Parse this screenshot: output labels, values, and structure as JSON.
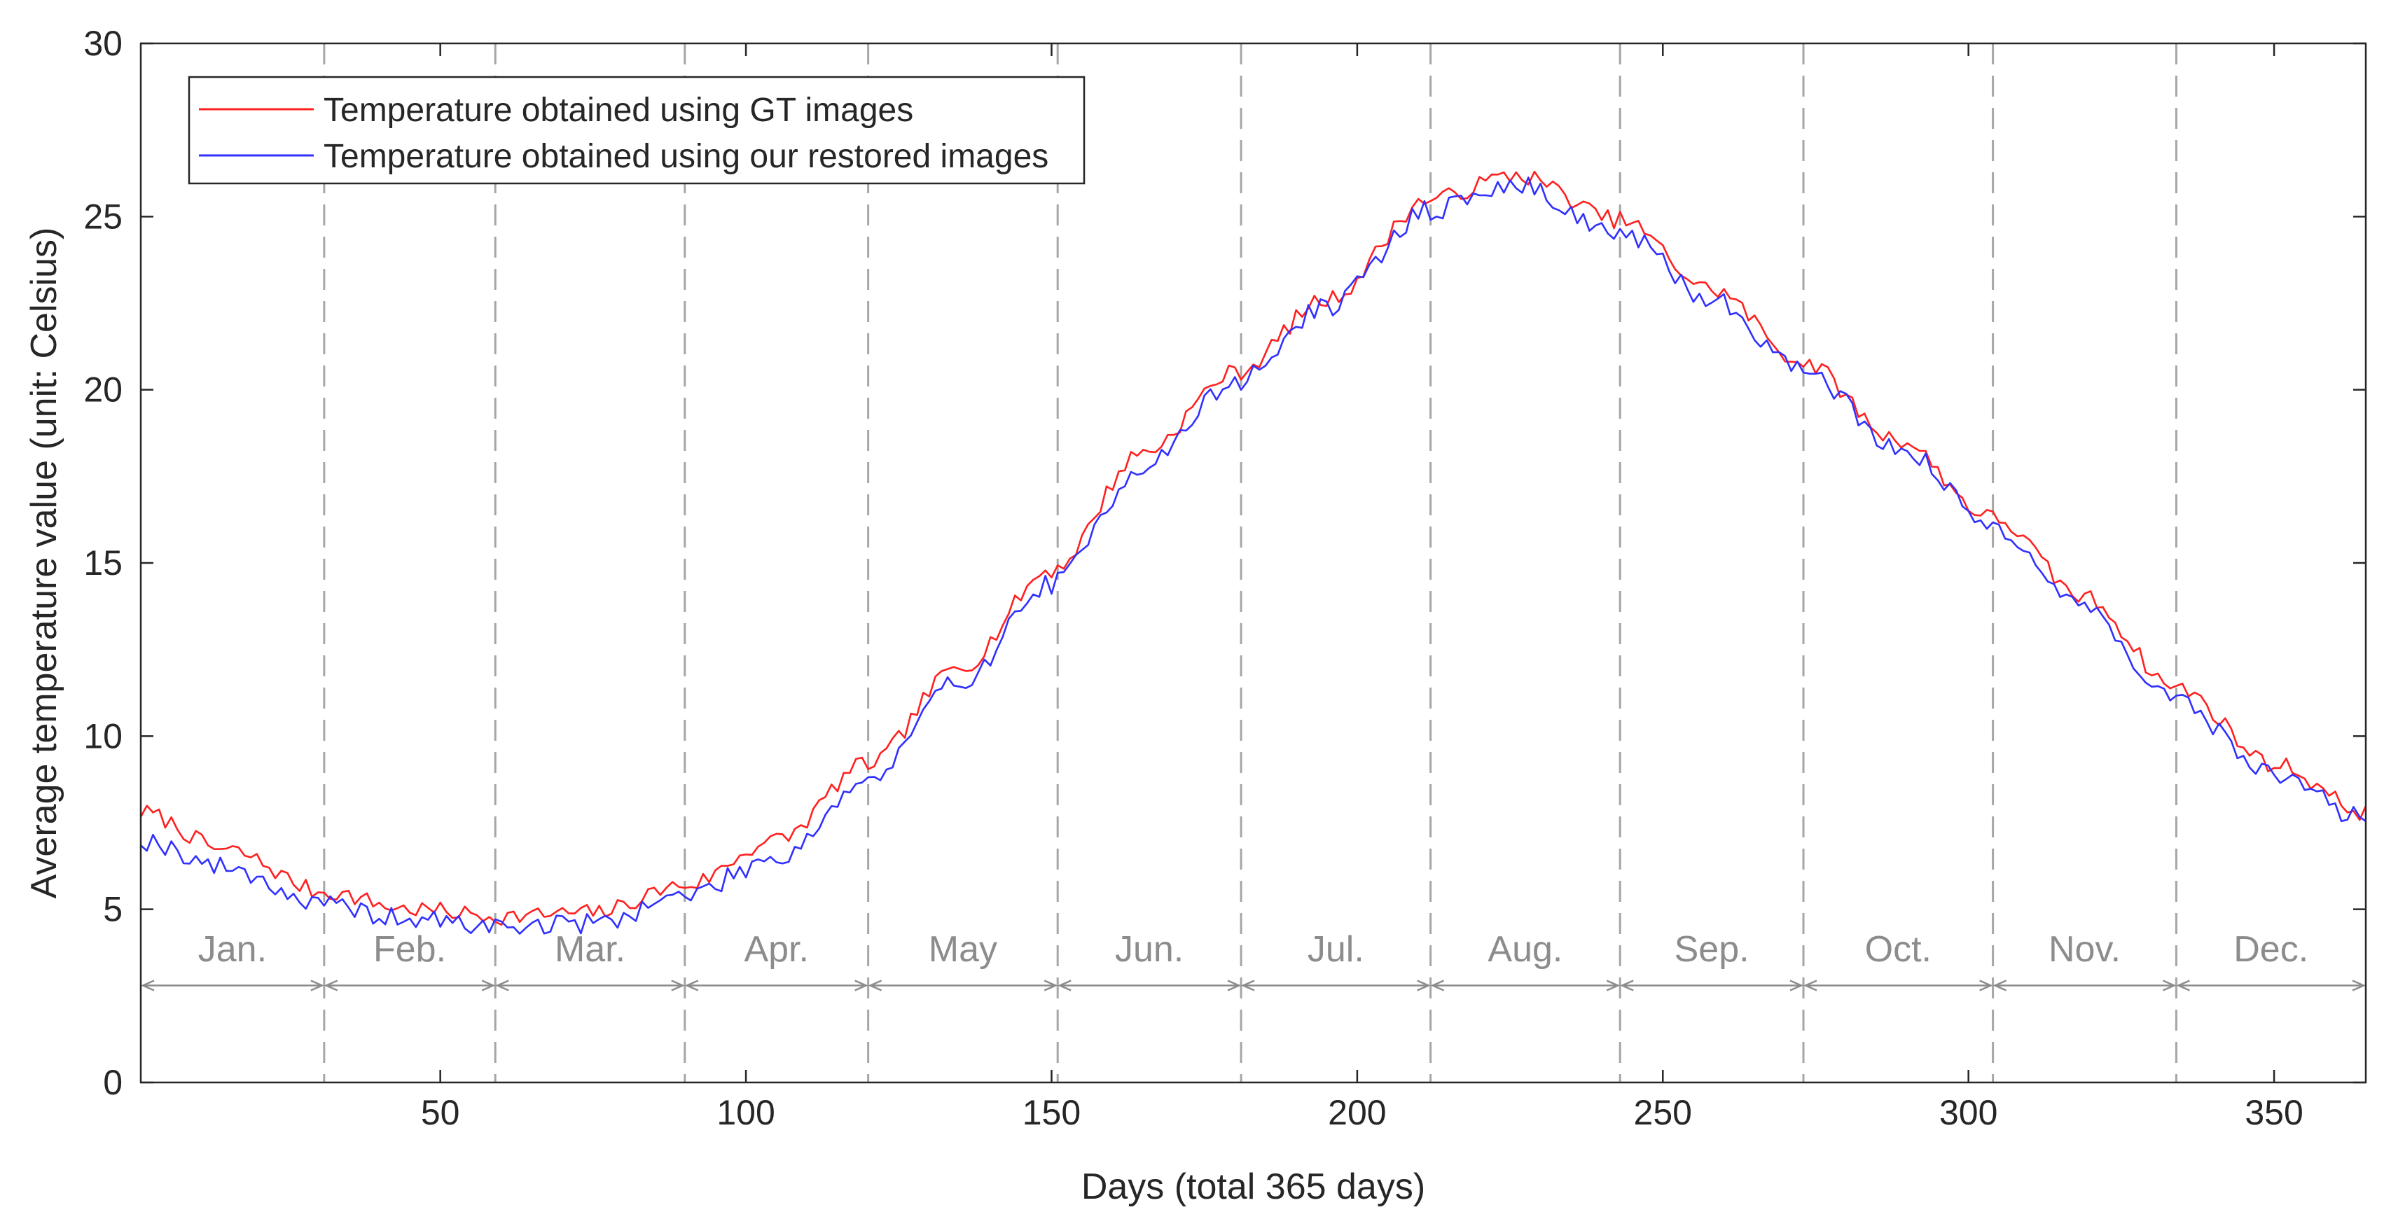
{
  "chart_data": {
    "type": "line",
    "title": "",
    "xlabel": "Days (total 365 days)",
    "ylabel": "Average temperature value (unit: Celsius)",
    "xlim": [
      1,
      365
    ],
    "ylim": [
      0,
      30
    ],
    "xticks": [
      50,
      100,
      150,
      200,
      250,
      300,
      350
    ],
    "yticks": [
      0,
      5,
      10,
      15,
      20,
      25,
      30
    ],
    "grid": false,
    "legend_position": "top-left",
    "months": [
      {
        "label": "Jan.",
        "start": 1,
        "end": 31
      },
      {
        "label": "Feb.",
        "start": 31,
        "end": 59
      },
      {
        "label": "Mar.",
        "start": 59,
        "end": 90
      },
      {
        "label": "Apr.",
        "start": 90,
        "end": 120
      },
      {
        "label": "May",
        "start": 120,
        "end": 151
      },
      {
        "label": "Jun.",
        "start": 151,
        "end": 181
      },
      {
        "label": "Jul.",
        "start": 181,
        "end": 212
      },
      {
        "label": "Aug.",
        "start": 212,
        "end": 243
      },
      {
        "label": "Sep.",
        "start": 243,
        "end": 273
      },
      {
        "label": "Oct.",
        "start": 273,
        "end": 304
      },
      {
        "label": "Nov.",
        "start": 304,
        "end": 334
      },
      {
        "label": "Dec.",
        "start": 334,
        "end": 365
      }
    ],
    "month_arrow_y": 2.8,
    "month_label_y": 3.5,
    "series": [
      {
        "name": "Temperature obtained using GT images",
        "color": "#ff2020",
        "anchors": [
          [
            1,
            7.8
          ],
          [
            15,
            6.7
          ],
          [
            31,
            5.5
          ],
          [
            45,
            5.0
          ],
          [
            60,
            4.8
          ],
          [
            75,
            4.9
          ],
          [
            90,
            5.7
          ],
          [
            105,
            7.0
          ],
          [
            120,
            9.2
          ],
          [
            135,
            12.0
          ],
          [
            150,
            14.8
          ],
          [
            165,
            18.2
          ],
          [
            180,
            20.5
          ],
          [
            195,
            22.6
          ],
          [
            212,
            25.5
          ],
          [
            226,
            26.2
          ],
          [
            243,
            24.9
          ],
          [
            258,
            22.9
          ],
          [
            273,
            20.8
          ],
          [
            288,
            18.6
          ],
          [
            304,
            16.3
          ],
          [
            319,
            14.0
          ],
          [
            334,
            11.4
          ],
          [
            350,
            9.2
          ],
          [
            365,
            7.8
          ]
        ],
        "noise": 0.25,
        "seed": 7
      },
      {
        "name": "Temperature obtained using our restored images",
        "color": "#3030ff",
        "anchors": [
          [
            1,
            7.0
          ],
          [
            15,
            6.2
          ],
          [
            31,
            5.1
          ],
          [
            45,
            4.7
          ],
          [
            60,
            4.5
          ],
          [
            75,
            4.6
          ],
          [
            90,
            5.4
          ],
          [
            105,
            6.5
          ],
          [
            120,
            8.7
          ],
          [
            135,
            11.6
          ],
          [
            150,
            14.4
          ],
          [
            165,
            17.8
          ],
          [
            180,
            20.2
          ],
          [
            195,
            22.4
          ],
          [
            212,
            25.2
          ],
          [
            226,
            25.9
          ],
          [
            243,
            24.5
          ],
          [
            258,
            22.6
          ],
          [
            273,
            20.6
          ],
          [
            288,
            18.4
          ],
          [
            304,
            16.1
          ],
          [
            319,
            13.7
          ],
          [
            334,
            11.0
          ],
          [
            350,
            8.9
          ],
          [
            365,
            7.6
          ]
        ],
        "noise": 0.3,
        "seed": 19
      }
    ]
  }
}
